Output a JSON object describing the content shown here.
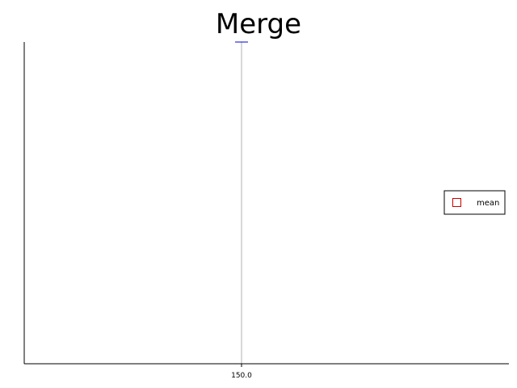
{
  "chart_data": {
    "type": "scatter",
    "title": "Merge",
    "xlabel": "",
    "ylabel": "",
    "x_ticks": [
      "150.0"
    ],
    "xlim": [
      100,
      200
    ],
    "ylim": [
      0,
      1
    ],
    "grid": "vertical line at x tick",
    "legend_position": "right",
    "legend": [
      {
        "label": "mean",
        "marker": "hollow-square",
        "color": "#cc0000"
      }
    ],
    "series": [
      {
        "name": "mean",
        "x": [
          150.0
        ],
        "y": [
          1.0
        ],
        "color": "#0000cc"
      }
    ]
  }
}
